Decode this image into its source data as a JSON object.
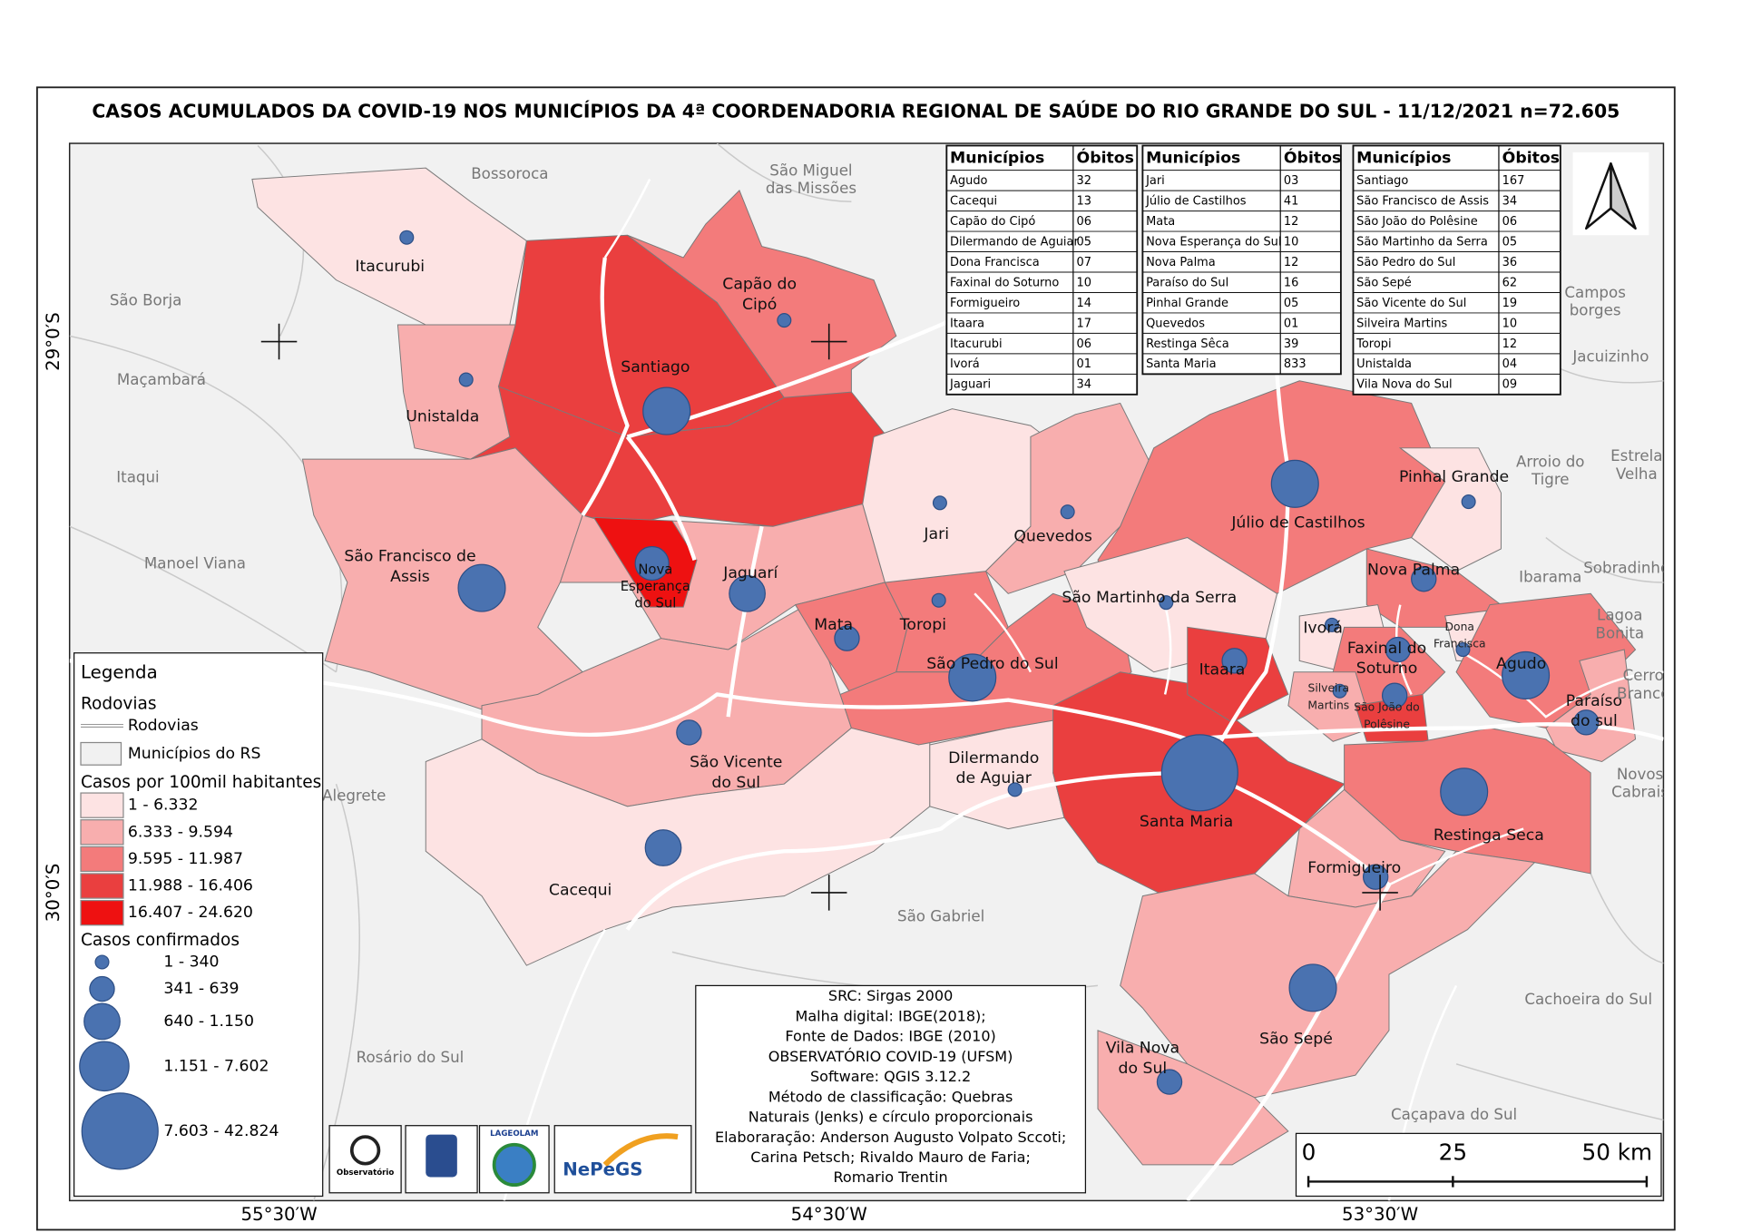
{
  "title": "CASOS ACUMULADOS DA COVID-19 NOS MUNICÍPIOS DA 4ª COORDENADORIA REGIONAL DE SAÚDE DO RIO GRANDE DO SUL - 11/12/2021 n=72.605",
  "tables": [
    {
      "headers": [
        "Municípios",
        "Óbitos"
      ],
      "rows": [
        [
          "Agudo",
          "32"
        ],
        [
          "Cacequi",
          "13"
        ],
        [
          "Capão do Cipó",
          "06"
        ],
        [
          "Dilermando de Aguiar",
          "05"
        ],
        [
          "Dona Francisca",
          "07"
        ],
        [
          "Faxinal do Soturno",
          "10"
        ],
        [
          "Formigueiro",
          "14"
        ],
        [
          "Itaara",
          "17"
        ],
        [
          "Itacurubi",
          "06"
        ],
        [
          "Ivorá",
          "01"
        ],
        [
          "Jaguari",
          "34"
        ]
      ]
    },
    {
      "headers": [
        "Municípios",
        "Óbitos"
      ],
      "rows": [
        [
          "Jari",
          "03"
        ],
        [
          "Júlio de Castilhos",
          "41"
        ],
        [
          "Mata",
          "12"
        ],
        [
          "Nova Esperança do Sul",
          "10"
        ],
        [
          "Nova Palma",
          "12"
        ],
        [
          "Paraíso do Sul",
          "16"
        ],
        [
          "Pinhal Grande",
          "05"
        ],
        [
          "Quevedos",
          "01"
        ],
        [
          "Restinga Sêca",
          "39"
        ],
        [
          "Santa Maria",
          "833"
        ]
      ]
    },
    {
      "headers": [
        "Municípios",
        "Óbitos"
      ],
      "rows": [
        [
          "Santiago",
          "167"
        ],
        [
          "São Francisco de Assis",
          "34"
        ],
        [
          "São João do Polêsine",
          "06"
        ],
        [
          "São Martinho da Serra",
          "05"
        ],
        [
          "São Pedro do Sul",
          "36"
        ],
        [
          "São Sepé",
          "62"
        ],
        [
          "São Vicente do Sul",
          "19"
        ],
        [
          "Silveira Martins",
          "10"
        ],
        [
          "Toropi",
          "12"
        ],
        [
          "Unistalda",
          "04"
        ],
        [
          "Vila Nova do Sul",
          "09"
        ]
      ]
    }
  ],
  "legend": {
    "title": "Legenda",
    "roads_heading": "Rodovias",
    "roads_item": "Rodovias",
    "municipalities_item": "Municípios do RS",
    "rate_heading": "Casos por 100mil habitantes",
    "rate_classes": [
      "1 - 6.332",
      "6.333 - 9.594",
      "9.595 - 11.987",
      "11.988 - 16.406",
      "16.407 - 24.620"
    ],
    "cases_heading": "Casos confirmados",
    "cases_classes": [
      "1 - 340",
      "341 - 639",
      "640 - 1.150",
      "1.151 - 7.602",
      "7.603 - 42.824"
    ]
  },
  "info": [
    "SRC: Sirgas 2000",
    "Malha digital: IBGE(2018);",
    "Fonte de Dados: IBGE (2010)",
    "OBSERVATÓRIO COVID-19 (UFSM)",
    "Software: QGIS 3.12.2",
    "Método de classificação: Quebras",
    "Naturais (Jenks) e círculo proporcionais",
    "Elaboraração: Anderson Augusto Volpato Sccoti;",
    "Carina Petsch; Rivaldo Mauro de Faria;",
    "Romario Trentin"
  ],
  "logos": [
    "Observatório",
    "LAGEOLAM",
    "NePeGS"
  ],
  "municipality_labels": [
    {
      "lines": [
        "Itacurubi"
      ]
    },
    {
      "lines": [
        "Unistalda"
      ]
    },
    {
      "lines": [
        "Santiago"
      ]
    },
    {
      "lines": [
        "Capão do",
        "Cipó"
      ]
    },
    {
      "lines": [
        "São Francisco de",
        "Assis"
      ]
    },
    {
      "lines": [
        "Nova",
        "Esperança",
        "do Sul"
      ]
    },
    {
      "lines": [
        "Jaguarí"
      ]
    },
    {
      "lines": [
        "Mata"
      ]
    },
    {
      "lines": [
        "Toropi"
      ]
    },
    {
      "lines": [
        "São Pedro do Sul"
      ]
    },
    {
      "lines": [
        "São Vicente",
        "do Sul"
      ]
    },
    {
      "lines": [
        "Cacequi"
      ]
    },
    {
      "lines": [
        "Jari"
      ]
    },
    {
      "lines": [
        "Quevedos"
      ]
    },
    {
      "lines": [
        "Júlio de Castilhos"
      ]
    },
    {
      "lines": [
        "Pinhal Grande"
      ]
    },
    {
      "lines": [
        "São Martinho da Serra"
      ]
    },
    {
      "lines": [
        "Dilermando",
        "de Aguiar"
      ]
    },
    {
      "lines": [
        "Santa Maria"
      ]
    },
    {
      "lines": [
        "Itaara"
      ]
    },
    {
      "lines": [
        "Nova Palma"
      ]
    },
    {
      "lines": [
        "Ivorá"
      ]
    },
    {
      "lines": [
        "Faxinal do",
        "Soturno"
      ]
    },
    {
      "lines": [
        "Dona",
        "Francisca"
      ]
    },
    {
      "lines": [
        "Silveira",
        "Martins"
      ]
    },
    {
      "lines": [
        "São João do",
        "Polêsine"
      ]
    },
    {
      "lines": [
        "Agudo"
      ]
    },
    {
      "lines": [
        "Paraíso",
        "do sul"
      ]
    },
    {
      "lines": [
        "Restinga Seca"
      ]
    },
    {
      "lines": [
        "Formigueiro"
      ]
    },
    {
      "lines": [
        "São Sepé"
      ]
    },
    {
      "lines": [
        "Vila Nova",
        "do Sul"
      ]
    }
  ],
  "neighbor_labels": [
    {
      "lines": [
        "Bossoroca"
      ]
    },
    {
      "lines": [
        "São Miguel",
        "das Missões"
      ]
    },
    {
      "lines": [
        "São Borja"
      ]
    },
    {
      "lines": [
        "Maçambará"
      ]
    },
    {
      "lines": [
        "Itaqui"
      ]
    },
    {
      "lines": [
        "Manoel Viana"
      ]
    },
    {
      "lines": [
        "Alegrete"
      ]
    },
    {
      "lines": [
        "São Gabriel"
      ]
    },
    {
      "lines": [
        "Rosário do Sul"
      ]
    },
    {
      "lines": [
        "Cachoeira do Sul"
      ]
    },
    {
      "lines": [
        "Caçapava do Sul"
      ]
    },
    {
      "lines": [
        "Campos",
        "borges"
      ]
    },
    {
      "lines": [
        "Jacuizinho"
      ]
    },
    {
      "lines": [
        "Arroio do",
        "Tigre"
      ]
    },
    {
      "lines": [
        "Estrela",
        "Velha"
      ]
    },
    {
      "lines": [
        "Ibarama"
      ]
    },
    {
      "lines": [
        "Sobradinho"
      ]
    },
    {
      "lines": [
        "Lagoa",
        "Bonita"
      ]
    },
    {
      "lines": [
        "Cerro",
        "Branco"
      ]
    },
    {
      "lines": [
        "Novos",
        "Cabrais"
      ]
    }
  ],
  "scale_labels": [
    "0",
    "25",
    "50 km"
  ],
  "coordinates": {
    "lat": [
      "29°0′S",
      "30°0′S"
    ],
    "lon": [
      "55°30′W",
      "54°30′W",
      "53°30′W"
    ]
  }
}
